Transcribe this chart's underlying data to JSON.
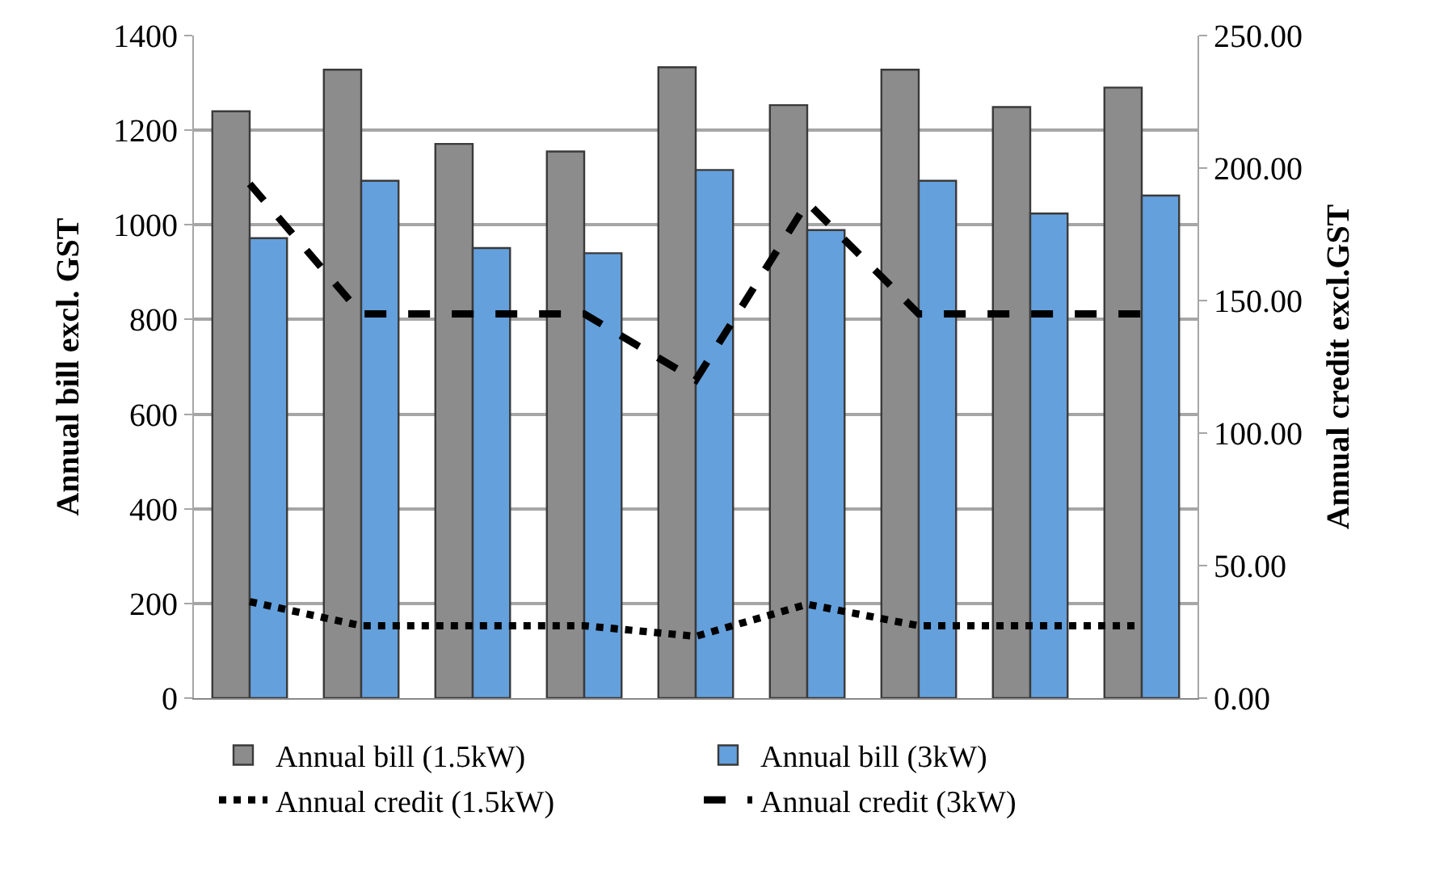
{
  "chart_data": {
    "type": "bar",
    "ylabel": "Annual bill excl. GST",
    "y2label": "Annual credit excl.GST",
    "categories": [
      null,
      null,
      null,
      null,
      null,
      null,
      null,
      null,
      null
    ],
    "series": [
      {
        "name": "Annual bill (1.5kW)",
        "color": "#8c8c8c",
        "values": [
          1240,
          1328,
          1171,
          1155,
          1333,
          1253,
          1328,
          1249,
          1290
        ]
      },
      {
        "name": "Annual bill (3kW)",
        "color": "#64a0dc",
        "values": [
          972,
          1093,
          951,
          940,
          1116,
          989,
          1093,
          1024,
          1062
        ]
      },
      {
        "name": "Annual credit (1.5kW)",
        "type": "line",
        "axis": "y2",
        "line_style": "dotted",
        "color": "#000000",
        "values": [
          36.4,
          27.3,
          27.3,
          27.3,
          23.3,
          35.4,
          27.3,
          27.3,
          27.3
        ]
      },
      {
        "name": "Annual credit (3kW)",
        "type": "line",
        "axis": "y2",
        "line_style": "dashed",
        "color": "#000000",
        "values": [
          194,
          145,
          145,
          145,
          120,
          187,
          145,
          145,
          145
        ]
      }
    ],
    "ylim": [
      0,
      1400
    ],
    "yticks": [
      0,
      200,
      400,
      600,
      800,
      1000,
      1200,
      1400
    ],
    "y2lim": [
      0,
      250
    ],
    "y2ticks": [
      {
        "value": 0,
        "label": "0.00"
      },
      {
        "value": 50,
        "label": "50.00"
      },
      {
        "value": 100,
        "label": "100.00"
      },
      {
        "value": 150,
        "label": "150.00"
      },
      {
        "value": 200,
        "label": "200.00"
      },
      {
        "value": 250,
        "label": "250.00"
      }
    ],
    "grid": "y",
    "legend": "bottom",
    "marker": "none"
  }
}
